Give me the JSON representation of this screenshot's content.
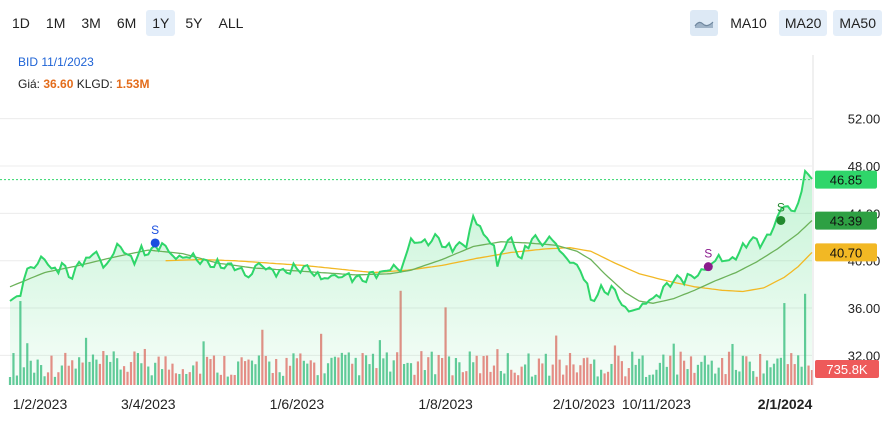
{
  "toolbar": {
    "ranges": [
      "1D",
      "1M",
      "3M",
      "6M",
      "1Y",
      "5Y",
      "ALL"
    ],
    "active_range": "1Y",
    "area_toggle_icon": "area-chart-icon",
    "ma_buttons": [
      "MA10",
      "MA20",
      "MA50"
    ],
    "active_ma": [
      "MA20",
      "MA50"
    ]
  },
  "info": {
    "line1": "BID 11/1/2023",
    "price_label": "Giá:",
    "price_value": "36.60",
    "vol_label": "KLGD:",
    "vol_value": "1.53M"
  },
  "colors": {
    "price": "#2fd66a",
    "ma_green": "#6cb25a",
    "ma_yellow": "#f2b824",
    "vol_up": "#2fb879",
    "vol_down": "#e8615f",
    "sell_blue": "#1a4fe0",
    "sell_purple": "#8b1c8d",
    "sell_green": "#238a2f"
  },
  "chart_data": {
    "type": "line",
    "y_ticks": [
      "52.00",
      "48.00",
      "44.00",
      "40.00",
      "36.00",
      "32.00"
    ],
    "ylim": [
      29.5,
      54
    ],
    "x_tick_labels": [
      "1/2/2023",
      "3/4/2023",
      "1/6/2023",
      "1/8/2023",
      "2/10/2023",
      "10/11/2023",
      "2/1/2024"
    ],
    "x_tick_index": [
      0,
      40,
      83,
      126,
      166,
      187,
      232
    ],
    "last_price_label": "46.85",
    "last_price": 46.85,
    "ma_green_label": "43.39",
    "ma_green_last": 43.39,
    "ma_yellow_label": "40.70",
    "ma_yellow_last": 40.7,
    "volume_label": "735.8K",
    "volume_last_k": 735.8,
    "price_keypoints": [
      [
        0,
        36.6
      ],
      [
        3,
        37.2
      ],
      [
        5,
        39.3
      ],
      [
        8,
        39.7
      ],
      [
        10,
        40.4
      ],
      [
        12,
        39.1
      ],
      [
        15,
        39.6
      ],
      [
        18,
        38.6
      ],
      [
        20,
        39.8
      ],
      [
        23,
        40.2
      ],
      [
        25,
        40.9
      ],
      [
        27,
        39.3
      ],
      [
        30,
        40.7
      ],
      [
        32,
        41.4
      ],
      [
        34,
        40.3
      ],
      [
        36,
        40.1
      ],
      [
        38,
        40.8
      ],
      [
        40,
        40.7
      ],
      [
        44,
        41.4
      ],
      [
        48,
        40.2
      ],
      [
        52,
        40.4
      ],
      [
        56,
        39.9
      ],
      [
        60,
        39.6
      ],
      [
        63,
        39.6
      ],
      [
        66,
        39.4
      ],
      [
        69,
        38.6
      ],
      [
        72,
        39.8
      ],
      [
        75,
        39.2
      ],
      [
        78,
        39.0
      ],
      [
        82,
        39.3
      ],
      [
        86,
        39.4
      ],
      [
        90,
        38.5
      ],
      [
        94,
        38.7
      ],
      [
        98,
        38.7
      ],
      [
        102,
        38.4
      ],
      [
        106,
        39.0
      ],
      [
        108,
        38.9
      ],
      [
        110,
        39.5
      ],
      [
        113,
        39.2
      ],
      [
        116,
        41.7
      ],
      [
        120,
        41.5
      ],
      [
        124,
        42.0
      ],
      [
        126,
        41.0
      ],
      [
        128,
        41.2
      ],
      [
        132,
        41.4
      ],
      [
        134,
        43.6
      ],
      [
        136,
        42.9
      ],
      [
        138,
        41.7
      ],
      [
        140,
        41.4
      ],
      [
        141,
        39.5
      ],
      [
        144,
        42.0
      ],
      [
        148,
        40.2
      ],
      [
        151,
        42.0
      ],
      [
        154,
        41.5
      ],
      [
        157,
        41.9
      ],
      [
        160,
        40.4
      ],
      [
        163,
        39.8
      ],
      [
        166,
        38.8
      ],
      [
        168,
        36.6
      ],
      [
        171,
        37.5
      ],
      [
        175,
        37.5
      ],
      [
        178,
        35.8
      ],
      [
        182,
        35.9
      ],
      [
        184,
        36.6
      ],
      [
        186,
        36.7
      ],
      [
        188,
        37.3
      ],
      [
        192,
        38.4
      ],
      [
        195,
        38.5
      ],
      [
        198,
        38.7
      ],
      [
        202,
        39.4
      ],
      [
        205,
        40.3
      ],
      [
        208,
        39.9
      ],
      [
        211,
        40.7
      ],
      [
        214,
        41.8
      ],
      [
        218,
        41.5
      ],
      [
        220,
        42.4
      ],
      [
        224,
        44.8
      ],
      [
        227,
        44.0
      ],
      [
        229,
        46.0
      ],
      [
        230,
        47.4
      ],
      [
        232,
        46.9
      ]
    ],
    "ma_green_keypoints": [
      [
        0,
        37.8
      ],
      [
        10,
        39.0
      ],
      [
        20,
        39.6
      ],
      [
        30,
        40.3
      ],
      [
        40,
        40.9
      ],
      [
        50,
        40.6
      ],
      [
        60,
        39.8
      ],
      [
        70,
        39.4
      ],
      [
        80,
        39.2
      ],
      [
        90,
        39.0
      ],
      [
        100,
        38.8
      ],
      [
        110,
        38.9
      ],
      [
        116,
        39.2
      ],
      [
        125,
        40.1
      ],
      [
        134,
        41.2
      ],
      [
        142,
        41.6
      ],
      [
        150,
        41.5
      ],
      [
        158,
        41.3
      ],
      [
        164,
        40.8
      ],
      [
        168,
        40.1
      ],
      [
        172,
        38.9
      ],
      [
        178,
        37.3
      ],
      [
        182,
        36.6
      ],
      [
        186,
        36.4
      ],
      [
        192,
        36.8
      ],
      [
        198,
        37.5
      ],
      [
        204,
        38.3
      ],
      [
        210,
        39.0
      ],
      [
        216,
        39.9
      ],
      [
        222,
        41.0
      ],
      [
        228,
        42.3
      ],
      [
        232,
        43.4
      ]
    ],
    "ma_yellow_keypoints": [
      [
        45,
        40.0
      ],
      [
        55,
        40.1
      ],
      [
        65,
        40.0
      ],
      [
        75,
        39.8
      ],
      [
        85,
        39.6
      ],
      [
        95,
        39.3
      ],
      [
        105,
        39.0
      ],
      [
        115,
        39.2
      ],
      [
        125,
        39.6
      ],
      [
        135,
        40.2
      ],
      [
        145,
        40.7
      ],
      [
        155,
        41.0
      ],
      [
        162,
        41.1
      ],
      [
        168,
        40.8
      ],
      [
        175,
        39.8
      ],
      [
        182,
        38.9
      ],
      [
        190,
        38.3
      ],
      [
        198,
        37.8
      ],
      [
        206,
        37.5
      ],
      [
        212,
        37.4
      ],
      [
        218,
        37.7
      ],
      [
        224,
        38.6
      ],
      [
        228,
        39.5
      ],
      [
        232,
        40.7
      ]
    ],
    "sell_markers": [
      {
        "i": 42,
        "price": 41.5,
        "label": "S",
        "color": "#1a4fe0"
      },
      {
        "i": 202,
        "price": 39.5,
        "label": "S",
        "color": "#8b1c8d"
      },
      {
        "i": 223,
        "price": 43.4,
        "label": "S",
        "color": "#238a2f"
      }
    ]
  }
}
